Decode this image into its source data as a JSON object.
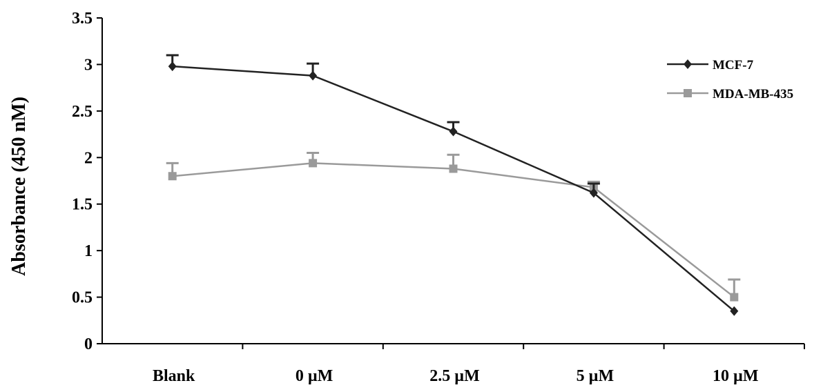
{
  "chart_data": {
    "type": "line",
    "title": "",
    "xlabel": "",
    "ylabel": "Absorbance (450 nM)",
    "categories": [
      "Blank",
      "0 µM",
      "2.5 µM",
      "5 µM",
      "10 µM"
    ],
    "ylim": [
      0,
      3.5
    ],
    "yticks": [
      "0",
      "0.5",
      "1",
      "1.5",
      "2",
      "2.5",
      "3",
      "3.5"
    ],
    "grid": false,
    "legend_position": "top-right",
    "series": [
      {
        "name": "MCF-7",
        "values": [
          2.98,
          2.88,
          2.28,
          1.62,
          0.35
        ],
        "errors": [
          0.12,
          0.13,
          0.1,
          0.1,
          0.0
        ],
        "color": "#222222",
        "marker": "diamond"
      },
      {
        "name": "MDA-MB-435",
        "values": [
          1.8,
          1.94,
          1.88,
          1.68,
          0.5
        ],
        "errors": [
          0.14,
          0.11,
          0.15,
          0.06,
          0.19
        ],
        "color": "#9a9a9a",
        "marker": "square"
      }
    ]
  }
}
